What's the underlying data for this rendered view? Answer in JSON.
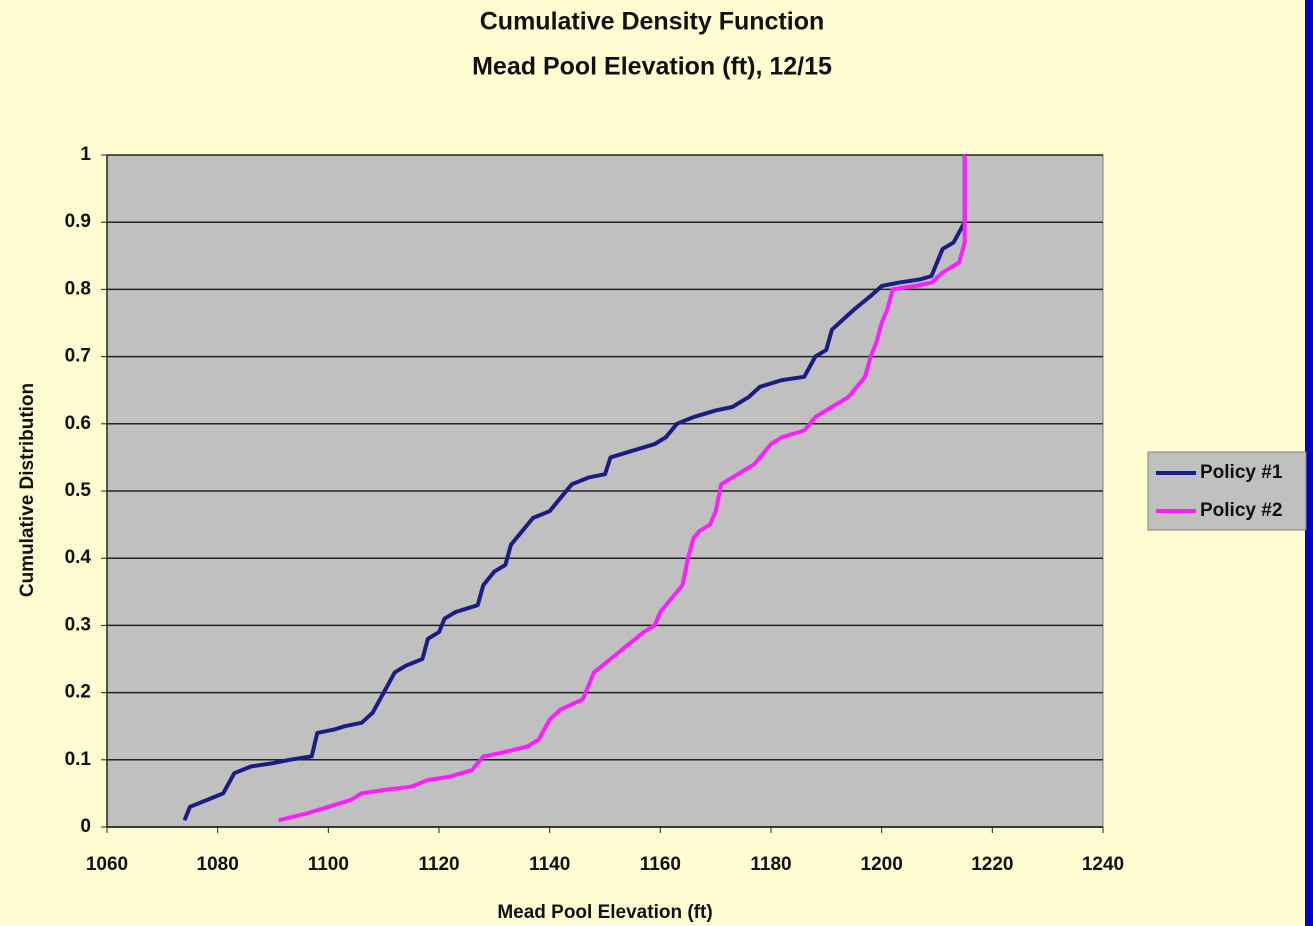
{
  "chart_data": {
    "type": "line",
    "title": "Cumulative Density Function",
    "subtitle": "Mead Pool Elevation (ft), 12/15",
    "x_label": "Mead Pool Elevation (ft)",
    "y_label": "Cumulative Distribution",
    "xlim": [
      1060,
      1240
    ],
    "xticks": [
      1060,
      1080,
      1100,
      1120,
      1140,
      1160,
      1180,
      1200,
      1220,
      1240
    ],
    "ylim": [
      0,
      1
    ],
    "yticks": [
      0,
      0.1,
      0.2,
      0.3,
      0.4,
      0.5,
      0.6,
      0.7,
      0.8,
      0.9,
      1
    ],
    "grid": true,
    "legend": "right",
    "series": [
      {
        "name": "Policy #1",
        "color": "#1c1c86",
        "x": [
          1074,
          1075,
          1078,
          1081,
          1083,
          1086,
          1090,
          1093,
          1097,
          1098,
          1101,
          1103,
          1106,
          1108,
          1110,
          1112,
          1114,
          1117,
          1118,
          1120,
          1121,
          1123,
          1127,
          1128,
          1130,
          1132,
          1133,
          1135,
          1137,
          1140,
          1142,
          1144,
          1147,
          1150,
          1151,
          1155,
          1159,
          1161,
          1163,
          1166,
          1170,
          1173,
          1176,
          1178,
          1182,
          1186,
          1188,
          1190,
          1191,
          1193,
          1195,
          1198,
          1200,
          1203,
          1207,
          1209,
          1211,
          1213,
          1214,
          1215,
          1215
        ],
        "values": [
          0.01,
          0.03,
          0.04,
          0.05,
          0.08,
          0.09,
          0.095,
          0.1,
          0.105,
          0.14,
          0.145,
          0.15,
          0.155,
          0.17,
          0.2,
          0.23,
          0.24,
          0.25,
          0.28,
          0.29,
          0.31,
          0.32,
          0.33,
          0.36,
          0.38,
          0.39,
          0.42,
          0.44,
          0.46,
          0.47,
          0.49,
          0.51,
          0.52,
          0.525,
          0.55,
          0.56,
          0.57,
          0.58,
          0.6,
          0.61,
          0.62,
          0.625,
          0.64,
          0.655,
          0.665,
          0.67,
          0.7,
          0.71,
          0.74,
          0.755,
          0.77,
          0.79,
          0.805,
          0.81,
          0.815,
          0.82,
          0.86,
          0.87,
          0.885,
          0.9,
          1.0
        ]
      },
      {
        "name": "Policy #2",
        "color": "#ff1eff",
        "x": [
          1091,
          1096,
          1100,
          1104,
          1106,
          1110,
          1115,
          1118,
          1122,
          1126,
          1128,
          1131,
          1136,
          1138,
          1140,
          1142,
          1146,
          1148,
          1151,
          1154,
          1157,
          1159,
          1160,
          1162,
          1164,
          1165,
          1166,
          1167,
          1169,
          1170,
          1171,
          1173,
          1177,
          1180,
          1182,
          1186,
          1188,
          1191,
          1194,
          1197,
          1198,
          1199,
          1200,
          1201,
          1202,
          1206,
          1209,
          1211,
          1214,
          1215,
          1215
        ],
        "values": [
          0.01,
          0.02,
          0.03,
          0.04,
          0.05,
          0.055,
          0.06,
          0.07,
          0.075,
          0.085,
          0.105,
          0.11,
          0.12,
          0.13,
          0.16,
          0.175,
          0.19,
          0.23,
          0.25,
          0.27,
          0.29,
          0.3,
          0.32,
          0.34,
          0.36,
          0.4,
          0.43,
          0.44,
          0.45,
          0.47,
          0.51,
          0.52,
          0.54,
          0.57,
          0.58,
          0.59,
          0.61,
          0.625,
          0.64,
          0.67,
          0.7,
          0.72,
          0.75,
          0.77,
          0.8,
          0.805,
          0.81,
          0.825,
          0.84,
          0.87,
          1.0
        ]
      }
    ]
  }
}
